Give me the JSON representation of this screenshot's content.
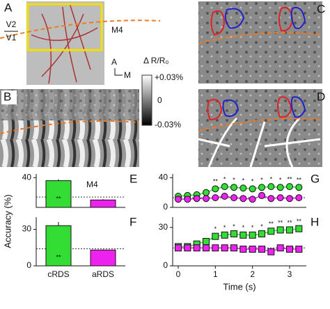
{
  "labels": {
    "panel_a": "A",
    "panel_b": "B",
    "panel_c": "C",
    "panel_d": "D",
    "v2": "V2",
    "v1": "V1",
    "area": "M4",
    "axis_a": "A",
    "axis_m": "M",
    "colorbar_title": "Δ R/R₀",
    "colorbar_ticks": [
      "+0.03%",
      "0",
      "-0.03%"
    ]
  },
  "chart_data": [
    {
      "type": "bar",
      "panel": "E",
      "label": "M4",
      "categories": [
        null,
        null
      ],
      "values": [
        36,
        10
      ],
      "errors": [
        2,
        1
      ],
      "colors": [
        "#33dd33",
        "#ee22ee"
      ],
      "bar_annotations": [
        "**",
        null
      ],
      "ylim": [
        0,
        45
      ],
      "yticks": [
        40
      ],
      "chance": 14,
      "ylabel": "Accuracy (%)"
    },
    {
      "type": "bar",
      "panel": "F",
      "categories": [
        "cRDS",
        "aRDS"
      ],
      "values": [
        33,
        13
      ],
      "errors": [
        3,
        0.5
      ],
      "colors": [
        "#33dd33",
        "#ee22ee"
      ],
      "bar_annotations": [
        "**",
        null
      ],
      "ylim": [
        0,
        40
      ],
      "yticks": [
        0,
        30
      ],
      "chance": 14
    },
    {
      "type": "line",
      "panel": "G",
      "x": [
        0,
        0.25,
        0.5,
        0.75,
        1,
        1.25,
        1.5,
        1.75,
        2,
        2.25,
        2.5,
        2.75,
        3,
        3.25
      ],
      "xlim": [
        -0.15,
        3.45
      ],
      "ylim": [
        0,
        45
      ],
      "yticks": [
        0,
        40
      ],
      "chance": 13,
      "series": [
        {
          "name": "cRDS",
          "color": "#33dd33",
          "marker": "circle",
          "values": [
            15,
            16,
            17,
            20,
            25,
            28,
            27,
            26,
            25,
            27,
            28,
            27,
            28,
            27
          ],
          "significance": [
            null,
            null,
            null,
            null,
            "**",
            "*",
            "*",
            "*",
            "*",
            "*",
            "*",
            "*",
            "**",
            "**"
          ]
        },
        {
          "name": "aRDS",
          "color": "#ee22ee",
          "marker": "circle",
          "values": [
            11,
            11,
            12,
            12,
            13,
            15,
            13,
            12,
            11,
            16,
            12,
            13,
            12,
            13
          ]
        }
      ]
    },
    {
      "type": "line",
      "panel": "H",
      "x": [
        0,
        0.25,
        0.5,
        0.75,
        1,
        1.25,
        1.5,
        1.75,
        2,
        2.25,
        2.5,
        2.75,
        3,
        3.25
      ],
      "xlim": [
        -0.15,
        3.45
      ],
      "ylim": [
        0,
        38
      ],
      "yticks": [
        0,
        30
      ],
      "xticks": [
        0,
        1,
        2,
        3
      ],
      "xlabel": "Time (s)",
      "chance": 14,
      "series": [
        {
          "name": "cRDS",
          "color": "#33dd33",
          "marker": "square",
          "values": [
            15,
            15,
            17,
            19,
            23,
            24,
            25,
            24,
            24,
            25,
            27,
            28,
            28,
            29
          ],
          "significance": [
            null,
            null,
            null,
            null,
            "*",
            "*",
            "*",
            "*",
            "*",
            "*",
            "**",
            "**",
            "**",
            "**"
          ]
        },
        {
          "name": "aRDS",
          "color": "#ee22ee",
          "marker": "square",
          "values": [
            14,
            14,
            14,
            14,
            14,
            14,
            14,
            13,
            13,
            13,
            11,
            14,
            13,
            13
          ]
        }
      ]
    }
  ]
}
